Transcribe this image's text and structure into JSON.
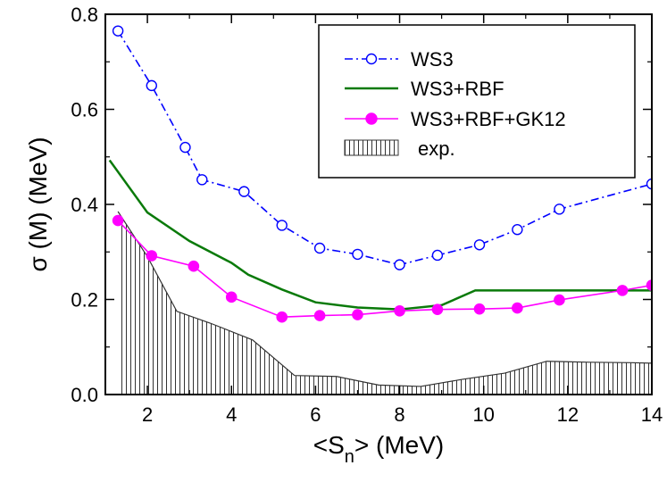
{
  "chart_data": {
    "type": "line",
    "xlabel": "<S",
    "xlabel_sub": "n",
    "xlabel_suffix": "> (MeV)",
    "ylabel": "σ (M) (MeV)",
    "xlim": [
      1.0,
      14.0
    ],
    "ylim": [
      0.0,
      0.8
    ],
    "x_ticks": [
      2,
      4,
      6,
      8,
      10,
      12,
      14
    ],
    "y_ticks": [
      0.0,
      0.2,
      0.4,
      0.6,
      0.8
    ],
    "y_tick_labels": [
      "0.0",
      "0.2",
      "0.4",
      "0.6",
      "0.8"
    ],
    "legend_position": "top-right",
    "legend": [
      "WS3",
      "WS3+RBF",
      "WS3+RBF+GK12",
      "exp."
    ],
    "series": [
      {
        "name": "WS3",
        "style": "dash-dot line with open circle markers",
        "color": "#0000ff",
        "x": [
          1.3,
          2.1,
          2.9,
          3.3,
          4.3,
          5.2,
          6.1,
          7.0,
          8.0,
          8.9,
          9.9,
          10.8,
          11.8,
          14.0
        ],
        "y": [
          0.765,
          0.65,
          0.52,
          0.452,
          0.427,
          0.356,
          0.308,
          0.295,
          0.273,
          0.293,
          0.315,
          0.347,
          0.39,
          0.443
        ]
      },
      {
        "name": "WS3+RBF",
        "style": "solid line",
        "color": "#0a7a0a",
        "x": [
          1.1,
          2.0,
          3.0,
          4.0,
          4.4,
          5.2,
          6.0,
          7.0,
          8.0,
          9.0,
          9.8,
          11.0,
          12.0,
          13.0,
          14.0
        ],
        "y": [
          0.493,
          0.383,
          0.323,
          0.277,
          0.252,
          0.221,
          0.194,
          0.183,
          0.179,
          0.188,
          0.219,
          0.219,
          0.219,
          0.219,
          0.219
        ]
      },
      {
        "name": "WS3+RBF+GK12",
        "style": "solid line with filled circle markers",
        "color": "#ff00ff",
        "x": [
          1.3,
          2.1,
          3.1,
          4.0,
          5.2,
          6.1,
          7.0,
          8.0,
          8.9,
          9.9,
          10.8,
          11.8,
          13.3,
          14.0
        ],
        "y": [
          0.366,
          0.292,
          0.27,
          0.205,
          0.163,
          0.166,
          0.168,
          0.176,
          0.179,
          0.18,
          0.182,
          0.199,
          0.219,
          0.23
        ]
      },
      {
        "name": "exp.",
        "style": "area with vertical hatching",
        "color": "#333333",
        "x": [
          1.3,
          2.0,
          2.7,
          3.5,
          4.5,
          5.5,
          6.5,
          7.5,
          8.5,
          9.5,
          10.5,
          11.5,
          12.5,
          13.5,
          14.0
        ],
        "y": [
          0.385,
          0.29,
          0.175,
          0.15,
          0.115,
          0.04,
          0.038,
          0.02,
          0.017,
          0.032,
          0.045,
          0.07,
          0.068,
          0.067,
          0.066
        ]
      }
    ]
  }
}
